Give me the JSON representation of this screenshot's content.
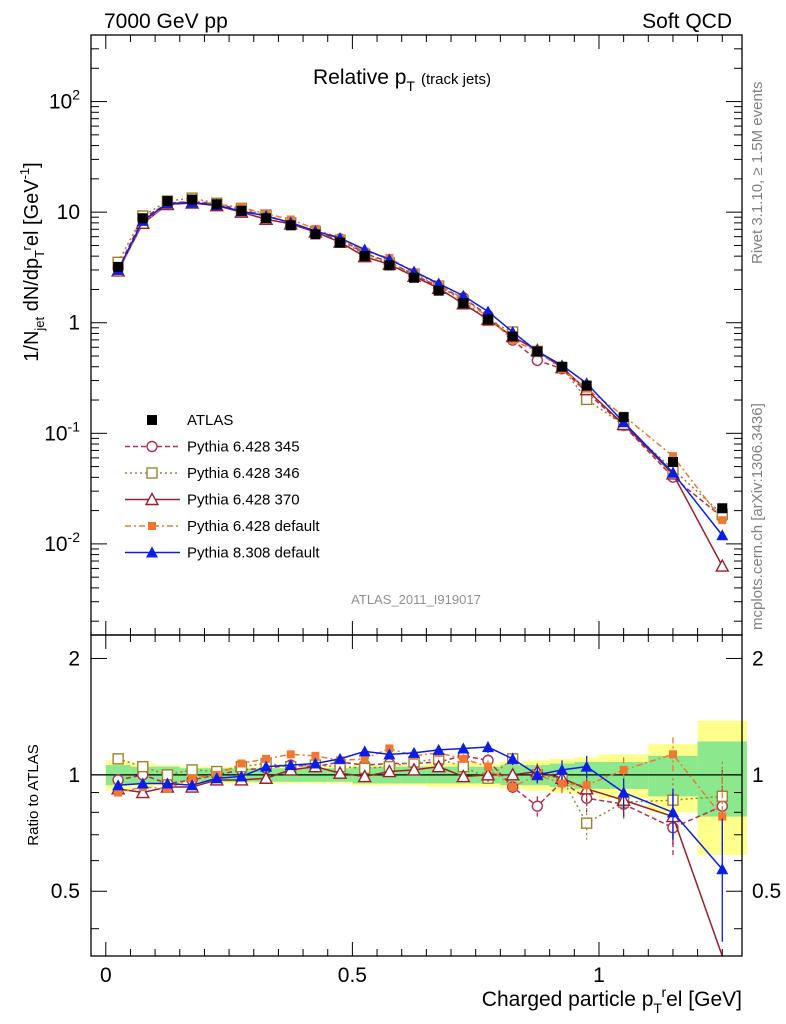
{
  "header": {
    "left": "7000 GeV pp",
    "right": "Soft QCD"
  },
  "plot_title": {
    "main": "Relative p",
    "main_sub": "T",
    "extra": "(track jets)"
  },
  "side_labels": {
    "rivet": "Rivet 3.1.10, ≥ 1.5M events",
    "mcplots": "mcplots.cern.ch [arXiv:1306.3436]"
  },
  "analysis_id": "ATLAS_2011_I919017",
  "main_panel": {
    "ylabel": "1/N_jet dN/dp_T^rel [GeV^-1]",
    "yticks": [
      {
        "base": "10",
        "exp": "-2"
      },
      {
        "base": "10",
        "exp": "-1"
      },
      {
        "base": "1",
        "exp": ""
      },
      {
        "base": "10",
        "exp": ""
      },
      {
        "base": "10",
        "exp": "2"
      }
    ]
  },
  "ratio_panel": {
    "ylabel": "Ratio to ATLAS",
    "yticks": [
      "0.5",
      "1",
      "2"
    ]
  },
  "x_axis": {
    "label": "Charged particle p_T^rel [GeV]",
    "ticks": [
      "0",
      "0.5",
      "1"
    ]
  },
  "chart_data": {
    "type": "scatter",
    "title": "Relative pT (track jets)",
    "xlabel": "Charged particle p_T^rel [GeV]",
    "ylabel": "1/N_jet dN/dp_T^rel [GeV^-1]",
    "y_scale": "log",
    "xlim": [
      -0.03,
      1.29
    ],
    "ylim": [
      0.0015,
      400
    ],
    "ratio_ylim": [
      0.34,
      2.3
    ],
    "ratio_scale": "log",
    "legend_position": "left",
    "x": [
      0.025,
      0.075,
      0.125,
      0.175,
      0.225,
      0.275,
      0.325,
      0.375,
      0.425,
      0.475,
      0.525,
      0.575,
      0.625,
      0.675,
      0.725,
      0.775,
      0.825,
      0.875,
      0.925,
      0.975,
      1.05,
      1.15,
      1.25
    ],
    "x_edges": [
      0.0,
      0.05,
      0.1,
      0.15,
      0.2,
      0.25,
      0.3,
      0.35,
      0.4,
      0.45,
      0.5,
      0.55,
      0.6,
      0.65,
      0.7,
      0.75,
      0.8,
      0.85,
      0.9,
      0.95,
      1.0,
      1.1,
      1.2,
      1.3
    ],
    "reference": {
      "name": "ATLAS",
      "values": [
        3.2,
        8.8,
        12.6,
        13.0,
        11.8,
        10.3,
        8.8,
        7.6,
        6.3,
        5.3,
        4.0,
        3.3,
        2.55,
        1.95,
        1.5,
        1.07,
        0.75,
        0.55,
        0.4,
        0.27,
        0.14,
        0.055,
        0.021
      ],
      "band_stat_sys": [
        0.06,
        0.05,
        0.05,
        0.04,
        0.04,
        0.04,
        0.04,
        0.04,
        0.04,
        0.04,
        0.05,
        0.05,
        0.05,
        0.05,
        0.05,
        0.05,
        0.06,
        0.06,
        0.07,
        0.08,
        0.08,
        0.12,
        0.22
      ],
      "band_total": [
        0.09,
        0.07,
        0.06,
        0.05,
        0.05,
        0.05,
        0.05,
        0.05,
        0.05,
        0.05,
        0.06,
        0.06,
        0.06,
        0.07,
        0.07,
        0.07,
        0.08,
        0.09,
        0.1,
        0.11,
        0.13,
        0.2,
        0.38
      ]
    },
    "series": [
      {
        "name": "Pythia 6.428 345",
        "color": "#b03050",
        "marker": "open-circle",
        "dash": "5,3",
        "ratio": [
          0.97,
          1.0,
          0.95,
          0.97,
          1.0,
          1.03,
          1.04,
          1.06,
          1.05,
          1.08,
          1.06,
          1.07,
          1.07,
          1.08,
          1.12,
          1.09,
          0.93,
          0.83,
          0.96,
          0.87,
          0.84,
          0.73,
          0.83
        ],
        "ratio_err": [
          0.02,
          0.02,
          0.02,
          0.02,
          0.02,
          0.02,
          0.02,
          0.02,
          0.02,
          0.02,
          0.02,
          0.03,
          0.03,
          0.03,
          0.03,
          0.04,
          0.04,
          0.05,
          0.06,
          0.07,
          0.08,
          0.12,
          0.2
        ]
      },
      {
        "name": "Pythia 6.428 346",
        "color": "#a08030",
        "marker": "open-square",
        "dash": "2,3",
        "ratio": [
          1.1,
          1.05,
          1.0,
          1.03,
          1.02,
          1.05,
          1.07,
          1.05,
          1.06,
          1.05,
          1.04,
          1.05,
          1.08,
          1.1,
          1.05,
          0.98,
          1.1,
          1.0,
          0.98,
          0.75,
          0.85,
          0.86,
          0.88
        ],
        "ratio_err": [
          0.02,
          0.02,
          0.02,
          0.02,
          0.02,
          0.02,
          0.02,
          0.02,
          0.02,
          0.02,
          0.02,
          0.03,
          0.03,
          0.03,
          0.03,
          0.04,
          0.04,
          0.05,
          0.06,
          0.07,
          0.08,
          0.12,
          0.2
        ]
      },
      {
        "name": "Pythia 6.428 370",
        "color": "#9a1e2e",
        "marker": "open-triangle",
        "dash": "",
        "ratio": [
          0.92,
          0.9,
          0.93,
          0.93,
          0.97,
          0.97,
          0.98,
          1.03,
          1.05,
          1.01,
          0.99,
          1.02,
          1.03,
          1.05,
          0.99,
          1.0,
          1.0,
          1.02,
          0.98,
          0.92,
          0.86,
          0.78,
          0.3
        ],
        "ratio_err": [
          0.02,
          0.02,
          0.02,
          0.02,
          0.02,
          0.02,
          0.02,
          0.02,
          0.02,
          0.02,
          0.02,
          0.03,
          0.03,
          0.03,
          0.03,
          0.04,
          0.04,
          0.05,
          0.06,
          0.07,
          0.08,
          0.12,
          0.2
        ]
      },
      {
        "name": "Pythia 6.428 default",
        "color": "#f07830",
        "marker": "filled-square",
        "dash": "6,3,2,3",
        "ratio": [
          0.9,
          0.93,
          0.92,
          0.98,
          1.0,
          1.07,
          1.1,
          1.13,
          1.12,
          1.09,
          1.1,
          1.17,
          1.12,
          1.14,
          1.1,
          1.05,
          0.93,
          1.0,
          0.95,
          0.94,
          1.03,
          1.13,
          0.78
        ],
        "ratio_err": [
          0.02,
          0.02,
          0.02,
          0.02,
          0.02,
          0.02,
          0.02,
          0.02,
          0.02,
          0.02,
          0.02,
          0.03,
          0.03,
          0.03,
          0.03,
          0.04,
          0.04,
          0.05,
          0.06,
          0.07,
          0.08,
          0.12,
          0.2
        ]
      },
      {
        "name": "Pythia 8.308 default",
        "color": "#0a1ee6",
        "marker": "filled-triangle",
        "dash": "",
        "ratio": [
          0.94,
          0.95,
          0.95,
          0.94,
          0.98,
          0.99,
          1.05,
          1.06,
          1.07,
          1.1,
          1.15,
          1.13,
          1.14,
          1.16,
          1.17,
          1.18,
          1.1,
          1.0,
          1.03,
          1.05,
          0.9,
          0.8,
          0.57
        ],
        "ratio_err": [
          0.02,
          0.02,
          0.02,
          0.02,
          0.02,
          0.02,
          0.02,
          0.02,
          0.02,
          0.02,
          0.02,
          0.03,
          0.03,
          0.03,
          0.03,
          0.04,
          0.04,
          0.05,
          0.06,
          0.07,
          0.08,
          0.12,
          0.2
        ]
      }
    ]
  }
}
